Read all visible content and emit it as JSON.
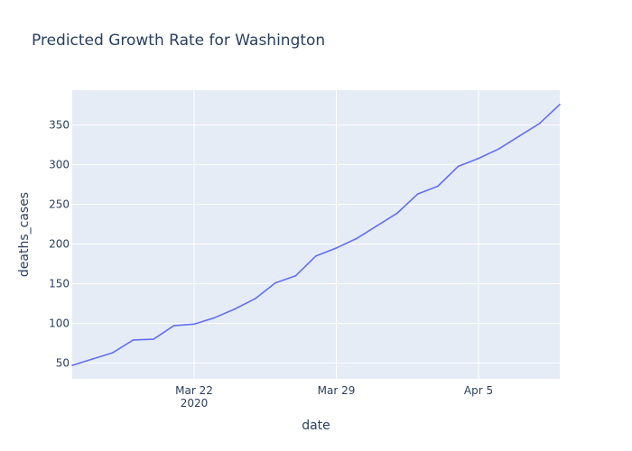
{
  "chart_data": {
    "type": "line",
    "title": "Predicted Growth Rate for Washington",
    "xlabel": "date",
    "ylabel": "deaths_cases",
    "x_axis": {
      "type": "date",
      "range": [
        "2020-03-16",
        "2020-04-09"
      ],
      "ticks": [
        {
          "date": "2020-03-22",
          "label": "Mar 22",
          "sublabel": "2020"
        },
        {
          "date": "2020-03-29",
          "label": "Mar 29",
          "sublabel": ""
        },
        {
          "date": "2020-04-05",
          "label": "Apr 5",
          "sublabel": ""
        }
      ]
    },
    "y_axis": {
      "range": [
        30,
        394
      ],
      "ticks": [
        50,
        100,
        150,
        200,
        250,
        300,
        350
      ]
    },
    "grid": true,
    "legend": "none",
    "colors": {
      "plot_bg": "#e5ecf6",
      "grid": "#ffffff",
      "line": "#636efa",
      "text": "#2a3f5f"
    },
    "series": [
      {
        "x": [
          "2020-03-16",
          "2020-03-17",
          "2020-03-18",
          "2020-03-19",
          "2020-03-20",
          "2020-03-21",
          "2020-03-22",
          "2020-03-23",
          "2020-03-24",
          "2020-03-25",
          "2020-03-26",
          "2020-03-27",
          "2020-03-28",
          "2020-03-29",
          "2020-03-30",
          "2020-03-31",
          "2020-04-01",
          "2020-04-02",
          "2020-04-03",
          "2020-04-04",
          "2020-04-05",
          "2020-04-06",
          "2020-04-07",
          "2020-04-08",
          "2020-04-09"
        ],
        "y": [
          47,
          55,
          63,
          79,
          80,
          97,
          99,
          107,
          118,
          131,
          151,
          160,
          185,
          195,
          207,
          223,
          239,
          263,
          273,
          298,
          308,
          320,
          336,
          352,
          376
        ]
      }
    ]
  }
}
